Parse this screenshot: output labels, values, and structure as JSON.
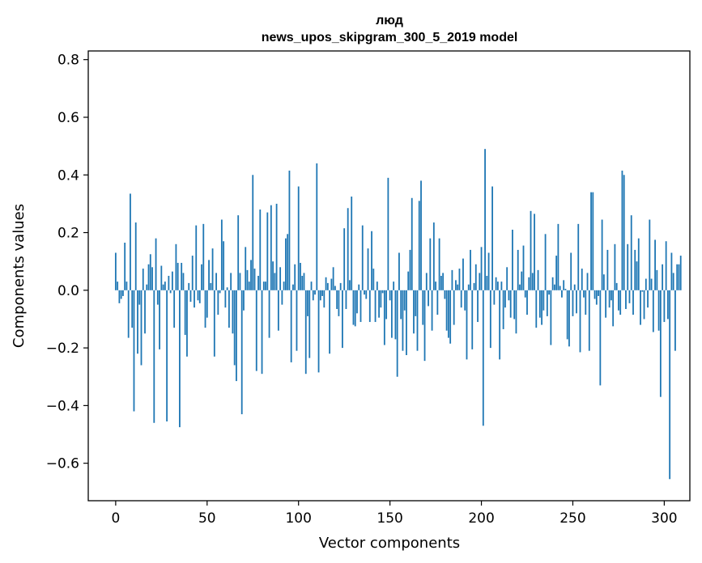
{
  "chart_data": {
    "type": "bar",
    "title_line1": "люд",
    "title_line2": "news_upos_skipgram_300_5_2019 model",
    "xlabel": "Vector components",
    "ylabel": "Components values",
    "xlim": [
      -15,
      314
    ],
    "ylim": [
      -0.73,
      0.83
    ],
    "xticks": [
      0,
      50,
      100,
      150,
      200,
      250,
      300
    ],
    "xtick_labels": [
      "0",
      "50",
      "100",
      "150",
      "200",
      "250",
      "300"
    ],
    "yticks": [
      -0.6,
      -0.4,
      -0.2,
      0.0,
      0.2,
      0.4,
      0.6,
      0.8
    ],
    "ytick_labels": [
      "−0.6",
      "−0.4",
      "−0.2",
      "0.0",
      "0.2",
      "0.4",
      "0.6",
      "0.8"
    ],
    "bar_color": "#1f77b4",
    "values": [
      0.13,
      0.03,
      -0.045,
      -0.03,
      -0.02,
      0.165,
      0.03,
      -0.165,
      0.335,
      -0.13,
      -0.42,
      0.235,
      -0.22,
      -0.05,
      -0.26,
      0.075,
      -0.15,
      0.02,
      0.09,
      0.125,
      0.08,
      -0.46,
      0.18,
      -0.05,
      -0.205,
      0.085,
      0.02,
      0.03,
      -0.455,
      0.05,
      -0.01,
      0.065,
      -0.13,
      0.16,
      0.095,
      -0.475,
      0.095,
      0.06,
      -0.155,
      -0.23,
      0.025,
      -0.04,
      0.12,
      -0.06,
      0.225,
      -0.035,
      -0.045,
      0.09,
      0.23,
      -0.13,
      -0.095,
      0.105,
      0.025,
      0.145,
      -0.23,
      0.06,
      -0.085,
      -0.01,
      0.245,
      0.17,
      -0.06,
      0.01,
      -0.13,
      0.06,
      -0.15,
      -0.26,
      -0.315,
      0.26,
      0.06,
      -0.43,
      -0.07,
      0.15,
      0.07,
      0.03,
      0.105,
      0.4,
      0.075,
      -0.28,
      0.05,
      0.28,
      -0.29,
      0.03,
      0.03,
      0.27,
      -0.165,
      0.295,
      0.1,
      0.06,
      0.3,
      -0.14,
      0.08,
      -0.05,
      0.03,
      0.18,
      0.195,
      0.415,
      -0.25,
      0.02,
      0.09,
      -0.21,
      0.36,
      0.095,
      0.05,
      0.06,
      -0.29,
      -0.09,
      -0.235,
      0.03,
      -0.035,
      -0.015,
      0.44,
      -0.285,
      -0.035,
      -0.02,
      -0.06,
      0.045,
      0.025,
      -0.22,
      0.04,
      0.08,
      0.015,
      -0.065,
      -0.09,
      0.025,
      -0.2,
      0.215,
      -0.065,
      0.285,
      0.035,
      0.325,
      -0.12,
      -0.125,
      -0.08,
      0.02,
      -0.11,
      0.225,
      -0.015,
      -0.03,
      0.145,
      -0.11,
      0.205,
      0.075,
      -0.11,
      0.03,
      -0.095,
      -0.06,
      -0.01,
      -0.19,
      -0.1,
      0.39,
      -0.035,
      -0.165,
      0.03,
      -0.17,
      -0.3,
      0.13,
      -0.1,
      -0.21,
      -0.07,
      -0.225,
      0.065,
      0.14,
      0.32,
      -0.15,
      -0.09,
      -0.21,
      0.31,
      0.38,
      -0.12,
      -0.245,
      0.06,
      -0.055,
      0.18,
      -0.14,
      0.235,
      0.03,
      -0.085,
      0.18,
      0.05,
      0.06,
      -0.03,
      -0.14,
      -0.165,
      -0.185,
      0.07,
      -0.12,
      0.035,
      0.02,
      0.075,
      -0.06,
      0.11,
      -0.07,
      -0.24,
      0.02,
      0.14,
      -0.205,
      0.025,
      0.09,
      -0.11,
      0.06,
      0.15,
      -0.47,
      0.49,
      0.05,
      0.13,
      -0.2,
      0.36,
      -0.05,
      0.045,
      0.03,
      -0.24,
      0.03,
      -0.135,
      -0.06,
      0.08,
      -0.035,
      -0.095,
      0.21,
      -0.1,
      -0.15,
      0.14,
      0.02,
      0.065,
      0.155,
      -0.025,
      -0.085,
      0.045,
      0.275,
      0.06,
      0.265,
      -0.13,
      0.07,
      -0.095,
      -0.12,
      -0.07,
      0.195,
      -0.09,
      -0.015,
      -0.19,
      0.045,
      0.02,
      0.12,
      0.23,
      0.015,
      -0.025,
      0.035,
      0.005,
      -0.17,
      -0.195,
      0.13,
      -0.09,
      0.02,
      -0.08,
      0.23,
      -0.215,
      0.075,
      -0.025,
      -0.085,
      0.06,
      -0.21,
      0.34,
      0.34,
      -0.03,
      -0.05,
      -0.02,
      -0.33,
      0.245,
      0.055,
      -0.095,
      0.14,
      -0.06,
      -0.035,
      -0.125,
      0.16,
      0.025,
      -0.07,
      -0.085,
      0.415,
      0.4,
      -0.065,
      0.16,
      -0.045,
      0.26,
      -0.085,
      0.14,
      0.1,
      0.18,
      -0.12,
      -0.005,
      -0.1,
      0.04,
      -0.06,
      0.245,
      0.04,
      -0.145,
      0.175,
      0.07,
      -0.14,
      -0.37,
      0.09,
      -0.11,
      0.17,
      -0.1,
      -0.655,
      0.13,
      0.06,
      -0.21,
      0.09,
      0.09,
      0.12
    ]
  }
}
